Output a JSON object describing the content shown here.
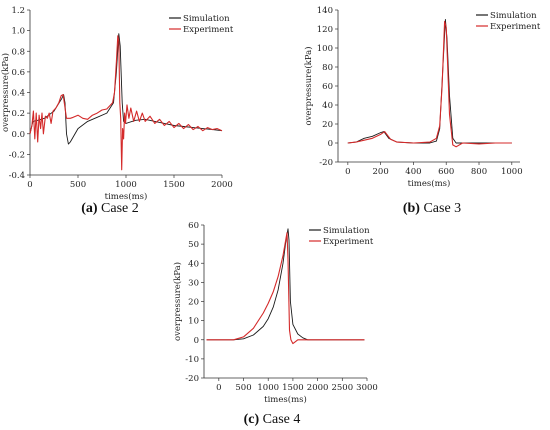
{
  "colors": {
    "simulation": "#1a1a1a",
    "experiment": "#d42a2a",
    "axis": "#333333"
  },
  "panels": [
    {
      "caption": {
        "letter": "(a)",
        "text": "Case 2"
      },
      "chart_data": {
        "type": "line",
        "xlabel": "times(ms)",
        "ylabel": "overpressure(kPa)",
        "xlim": [
          0,
          2000
        ],
        "ylim": [
          -0.4,
          1.2
        ],
        "xticks": [
          0,
          500,
          1000,
          1500,
          2000
        ],
        "yticks": [
          -0.4,
          -0.2,
          0.0,
          0.2,
          0.4,
          0.6,
          0.8,
          1.0,
          1.2
        ],
        "ytick_labels": [
          "-0.4",
          "-0.2",
          "0.0",
          "0.2",
          "0.4",
          "0.6",
          "0.8",
          "1.0",
          "1.2"
        ],
        "legend_position": "top-right",
        "series": [
          {
            "name": "Simulation",
            "color": "#1a1a1a",
            "points": [
              [
                0,
                0
              ],
              [
                30,
                0.12
              ],
              [
                80,
                0.13
              ],
              [
                150,
                0.15
              ],
              [
                250,
                0.22
              ],
              [
                330,
                0.34
              ],
              [
                350,
                0.38
              ],
              [
                365,
                0.3
              ],
              [
                380,
                0.0
              ],
              [
                400,
                -0.1
              ],
              [
                420,
                -0.08
              ],
              [
                500,
                0.05
              ],
              [
                600,
                0.12
              ],
              [
                700,
                0.16
              ],
              [
                800,
                0.2
              ],
              [
                870,
                0.3
              ],
              [
                900,
                0.6
              ],
              [
                925,
                0.97
              ],
              [
                940,
                0.85
              ],
              [
                960,
                0.3
              ],
              [
                975,
                0.12
              ],
              [
                1000,
                0.1
              ],
              [
                1100,
                0.13
              ],
              [
                1200,
                0.14
              ],
              [
                1300,
                0.12
              ],
              [
                1400,
                0.1
              ],
              [
                1500,
                0.08
              ],
              [
                1600,
                0.07
              ],
              [
                1700,
                0.06
              ],
              [
                1800,
                0.05
              ],
              [
                1900,
                0.04
              ],
              [
                2000,
                0.03
              ]
            ]
          },
          {
            "name": "Experiment",
            "color": "#d42a2a",
            "points": [
              [
                0,
                0
              ],
              [
                20,
                0.08
              ],
              [
                35,
                0.22
              ],
              [
                50,
                -0.05
              ],
              [
                65,
                0.2
              ],
              [
                80,
                -0.08
              ],
              [
                95,
                0.18
              ],
              [
                110,
                0.05
              ],
              [
                125,
                0.2
              ],
              [
                140,
                0.0
              ],
              [
                160,
                0.17
              ],
              [
                180,
                0.15
              ],
              [
                200,
                0.2
              ],
              [
                220,
                0.1
              ],
              [
                240,
                0.22
              ],
              [
                270,
                0.25
              ],
              [
                300,
                0.3
              ],
              [
                325,
                0.37
              ],
              [
                345,
                0.38
              ],
              [
                360,
                0.28
              ],
              [
                380,
                0.15
              ],
              [
                420,
                0.15
              ],
              [
                450,
                0.16
              ],
              [
                500,
                0.18
              ],
              [
                550,
                0.15
              ],
              [
                600,
                0.14
              ],
              [
                650,
                0.18
              ],
              [
                700,
                0.2
              ],
              [
                750,
                0.23
              ],
              [
                800,
                0.24
              ],
              [
                830,
                0.27
              ],
              [
                860,
                0.3
              ],
              [
                880,
                0.4
              ],
              [
                900,
                0.7
              ],
              [
                915,
                0.95
              ],
              [
                925,
                0.9
              ],
              [
                935,
                0.3
              ],
              [
                945,
                0.15
              ],
              [
                955,
                -0.35
              ],
              [
                965,
                0.05
              ],
              [
                975,
                -0.05
              ],
              [
                985,
                0.2
              ],
              [
                995,
                0.1
              ],
              [
                1010,
                0.28
              ],
              [
                1030,
                0.15
              ],
              [
                1050,
                0.25
              ],
              [
                1080,
                0.12
              ],
              [
                1110,
                0.22
              ],
              [
                1140,
                0.12
              ],
              [
                1170,
                0.2
              ],
              [
                1200,
                0.12
              ],
              [
                1250,
                0.17
              ],
              [
                1300,
                0.1
              ],
              [
                1350,
                0.14
              ],
              [
                1400,
                0.08
              ],
              [
                1450,
                0.12
              ],
              [
                1500,
                0.06
              ],
              [
                1550,
                0.1
              ],
              [
                1600,
                0.05
              ],
              [
                1650,
                0.09
              ],
              [
                1700,
                0.04
              ],
              [
                1750,
                0.07
              ],
              [
                1800,
                0.03
              ],
              [
                1850,
                0.06
              ],
              [
                1900,
                0.04
              ],
              [
                1950,
                0.05
              ],
              [
                2000,
                0.03
              ]
            ]
          }
        ]
      }
    },
    {
      "caption": {
        "letter": "(b)",
        "text": "Case 3"
      },
      "chart_data": {
        "type": "line",
        "xlabel": "times(ms)",
        "ylabel": "overpressure(kPa)",
        "xlim": [
          -60,
          1050
        ],
        "ylim": [
          -20,
          140
        ],
        "xticks": [
          0,
          200,
          400,
          600,
          800,
          1000
        ],
        "yticks": [
          -20,
          0,
          20,
          40,
          60,
          80,
          100,
          120,
          140
        ],
        "legend_position": "top-right",
        "series": [
          {
            "name": "Simulation",
            "color": "#1a1a1a",
            "points": [
              [
                0,
                0
              ],
              [
                50,
                1
              ],
              [
                100,
                5
              ],
              [
                150,
                7
              ],
              [
                200,
                11
              ],
              [
                220,
                12
              ],
              [
                250,
                5
              ],
              [
                300,
                1
              ],
              [
                400,
                0
              ],
              [
                500,
                0
              ],
              [
                540,
                2
              ],
              [
                560,
                15
              ],
              [
                580,
                80
              ],
              [
                595,
                130
              ],
              [
                605,
                110
              ],
              [
                620,
                50
              ],
              [
                640,
                5
              ],
              [
                660,
                0
              ],
              [
                700,
                0
              ],
              [
                800,
                0
              ],
              [
                900,
                0
              ],
              [
                1000,
                0
              ]
            ]
          },
          {
            "name": "Experiment",
            "color": "#d42a2a",
            "points": [
              [
                0,
                0
              ],
              [
                50,
                1
              ],
              [
                100,
                3
              ],
              [
                150,
                5
              ],
              [
                200,
                9
              ],
              [
                225,
                12
              ],
              [
                260,
                4
              ],
              [
                300,
                1
              ],
              [
                400,
                0
              ],
              [
                500,
                1
              ],
              [
                540,
                5
              ],
              [
                560,
                18
              ],
              [
                575,
                60
              ],
              [
                590,
                128
              ],
              [
                600,
                122
              ],
              [
                620,
                30
              ],
              [
                640,
                -2
              ],
              [
                660,
                -4
              ],
              [
                700,
                0
              ],
              [
                800,
                -1
              ],
              [
                900,
                0
              ],
              [
                1000,
                0
              ]
            ]
          }
        ]
      }
    },
    {
      "caption": {
        "letter": "(c)",
        "text": "Case 4"
      },
      "chart_data": {
        "type": "line",
        "xlabel": "times(ms)",
        "ylabel": "overpressure(kPa)",
        "xlim": [
          -300,
          3000
        ],
        "ylim": [
          -20,
          60
        ],
        "xticks": [
          0,
          500,
          1000,
          1500,
          2000,
          2500,
          3000
        ],
        "yticks": [
          -20,
          -10,
          0,
          10,
          20,
          30,
          40,
          50,
          60
        ],
        "legend_position": "top-right",
        "series": [
          {
            "name": "Simulation",
            "color": "#1a1a1a",
            "points": [
              [
                -250,
                0
              ],
              [
                0,
                0
              ],
              [
                300,
                0
              ],
              [
                500,
                0.5
              ],
              [
                700,
                2.5
              ],
              [
                900,
                7
              ],
              [
                1000,
                11
              ],
              [
                1100,
                17
              ],
              [
                1200,
                26
              ],
              [
                1300,
                40
              ],
              [
                1350,
                50
              ],
              [
                1400,
                58
              ],
              [
                1420,
                52
              ],
              [
                1450,
                20
              ],
              [
                1500,
                8
              ],
              [
                1600,
                3
              ],
              [
                1700,
                1
              ],
              [
                1800,
                0
              ],
              [
                2000,
                0
              ],
              [
                2500,
                0
              ],
              [
                2950,
                0
              ]
            ]
          },
          {
            "name": "Experiment",
            "color": "#d42a2a",
            "points": [
              [
                -250,
                0
              ],
              [
                0,
                0
              ],
              [
                300,
                0
              ],
              [
                500,
                1.5
              ],
              [
                700,
                6
              ],
              [
                900,
                14
              ],
              [
                1000,
                19
              ],
              [
                1100,
                25
              ],
              [
                1200,
                33
              ],
              [
                1300,
                44
              ],
              [
                1380,
                56
              ],
              [
                1400,
                42
              ],
              [
                1430,
                5
              ],
              [
                1460,
                0
              ],
              [
                1500,
                -2
              ],
              [
                1550,
                -1
              ],
              [
                1600,
                0
              ],
              [
                2000,
                0
              ],
              [
                2500,
                0
              ],
              [
                2950,
                0
              ]
            ]
          }
        ]
      }
    }
  ]
}
